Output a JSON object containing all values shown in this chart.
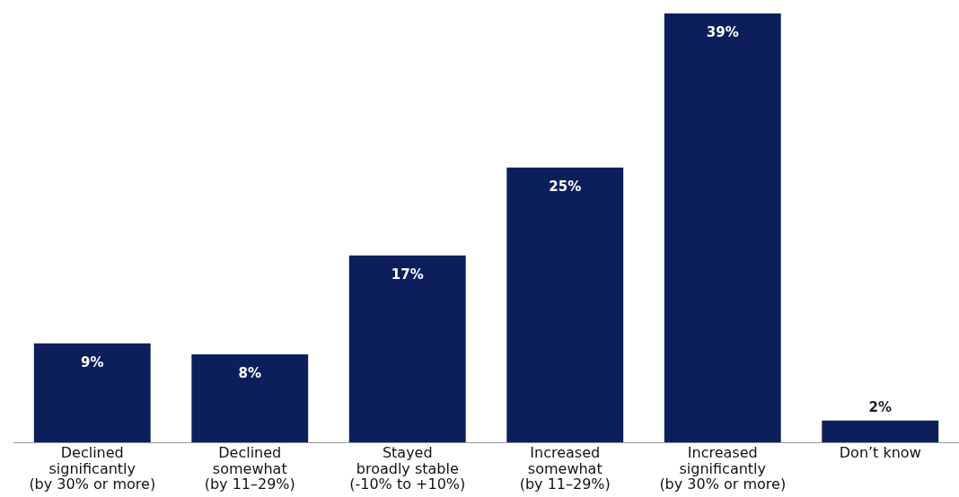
{
  "chart_data": {
    "type": "bar",
    "categories": [
      "Declined\nsignificantly\n(by 30% or more)",
      "Declined\nsomewhat\n(by 11–29%)",
      "Stayed\nbroadly stable\n(-10% to +10%)",
      "Increased\nsomewhat\n(by 11–29%)",
      "Increased\nsignificantly\n(by 30% or more)",
      "Don’t know"
    ],
    "values": [
      9,
      8,
      17,
      25,
      39,
      2
    ],
    "value_labels": [
      "9%",
      "8%",
      "17%",
      "25%",
      "39%",
      "2%"
    ],
    "color": "#0c1f5b",
    "grid": false,
    "legend": false
  }
}
